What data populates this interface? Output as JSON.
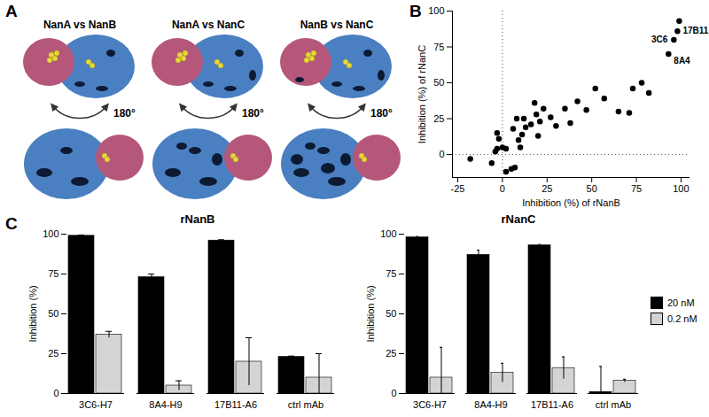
{
  "chart_data": [
    {
      "type": "diagram",
      "panel": "A",
      "titles": [
        "NanA vs NanB",
        "NanA vs NanC",
        "NanB vs NanC"
      ],
      "rotation_label": "180°"
    },
    {
      "type": "scatter",
      "panel": "B",
      "xlabel": "Inhibition (%) of rNanB",
      "ylabel": "Inhibition (%) of rNanC",
      "x": [
        -18,
        -6,
        -4,
        -3,
        -3,
        -2,
        0,
        2,
        2,
        5,
        7,
        6,
        8,
        9,
        10,
        11,
        12,
        13,
        16,
        18,
        19,
        20,
        21,
        23,
        27,
        30,
        35,
        38,
        42,
        47,
        52,
        57,
        65,
        71,
        73,
        78,
        82,
        93,
        96,
        98,
        99
      ],
      "y": [
        -3,
        -6,
        2,
        4,
        15,
        11,
        5,
        -12,
        4,
        -10,
        -9,
        18,
        25,
        10,
        5,
        14,
        25,
        19,
        21,
        36,
        28,
        13,
        23,
        32,
        26,
        20,
        32,
        22,
        37,
        31,
        46,
        39,
        30,
        29,
        46,
        50,
        43,
        70,
        80,
        86,
        93
      ],
      "color": "#000000",
      "xlim": [
        -28,
        105
      ],
      "xticks": [
        -25,
        0,
        25,
        50,
        75,
        100
      ],
      "ylim": [
        -16,
        100
      ],
      "yticks": [
        0,
        25,
        50,
        75,
        100
      ],
      "reference_x": 0,
      "reference_y": 0,
      "annotations": [
        {
          "text": "3C6",
          "x": 96,
          "y": 80
        },
        {
          "text": "17B11",
          "x": 98,
          "y": 86
        },
        {
          "text": "8A4",
          "x": 93,
          "y": 70
        }
      ]
    },
    {
      "type": "bar",
      "panel": "C",
      "title": "rNanB",
      "ylabel": "Inhibition (%)",
      "categories": [
        "3C6-H7",
        "8A4-H9",
        "17B11-A6",
        "ctrl mAb"
      ],
      "series": [
        {
          "name": "20 nM",
          "color": "#000000",
          "values": [
            99,
            73,
            96,
            23
          ],
          "errors": [
            0.5,
            2,
            0.5,
            0.5
          ]
        },
        {
          "name": "0.2 nM",
          "color": "#d4d4d4",
          "values": [
            37,
            5,
            20,
            10
          ],
          "errors": [
            2,
            3,
            15,
            15
          ]
        }
      ],
      "ylim": [
        0,
        100
      ],
      "yticks": [
        0,
        25,
        50,
        75,
        100
      ]
    },
    {
      "type": "bar",
      "title": "rNanC",
      "ylabel": "Inhibition (%)",
      "categories": [
        "3C6-H7",
        "8A4-H9",
        "17B11-A6",
        "ctrl mAb"
      ],
      "series": [
        {
          "name": "20 nM",
          "color": "#000000",
          "values": [
            98,
            87,
            93,
            1
          ],
          "errors": [
            0.5,
            3,
            0.5,
            16
          ]
        },
        {
          "name": "0.2 nM",
          "color": "#d4d4d4",
          "values": [
            10,
            13,
            16,
            8
          ],
          "errors": [
            19,
            6,
            7,
            1
          ]
        }
      ],
      "ylim": [
        0,
        100
      ],
      "yticks": [
        0,
        25,
        50,
        75,
        100
      ],
      "legend": "right"
    }
  ]
}
